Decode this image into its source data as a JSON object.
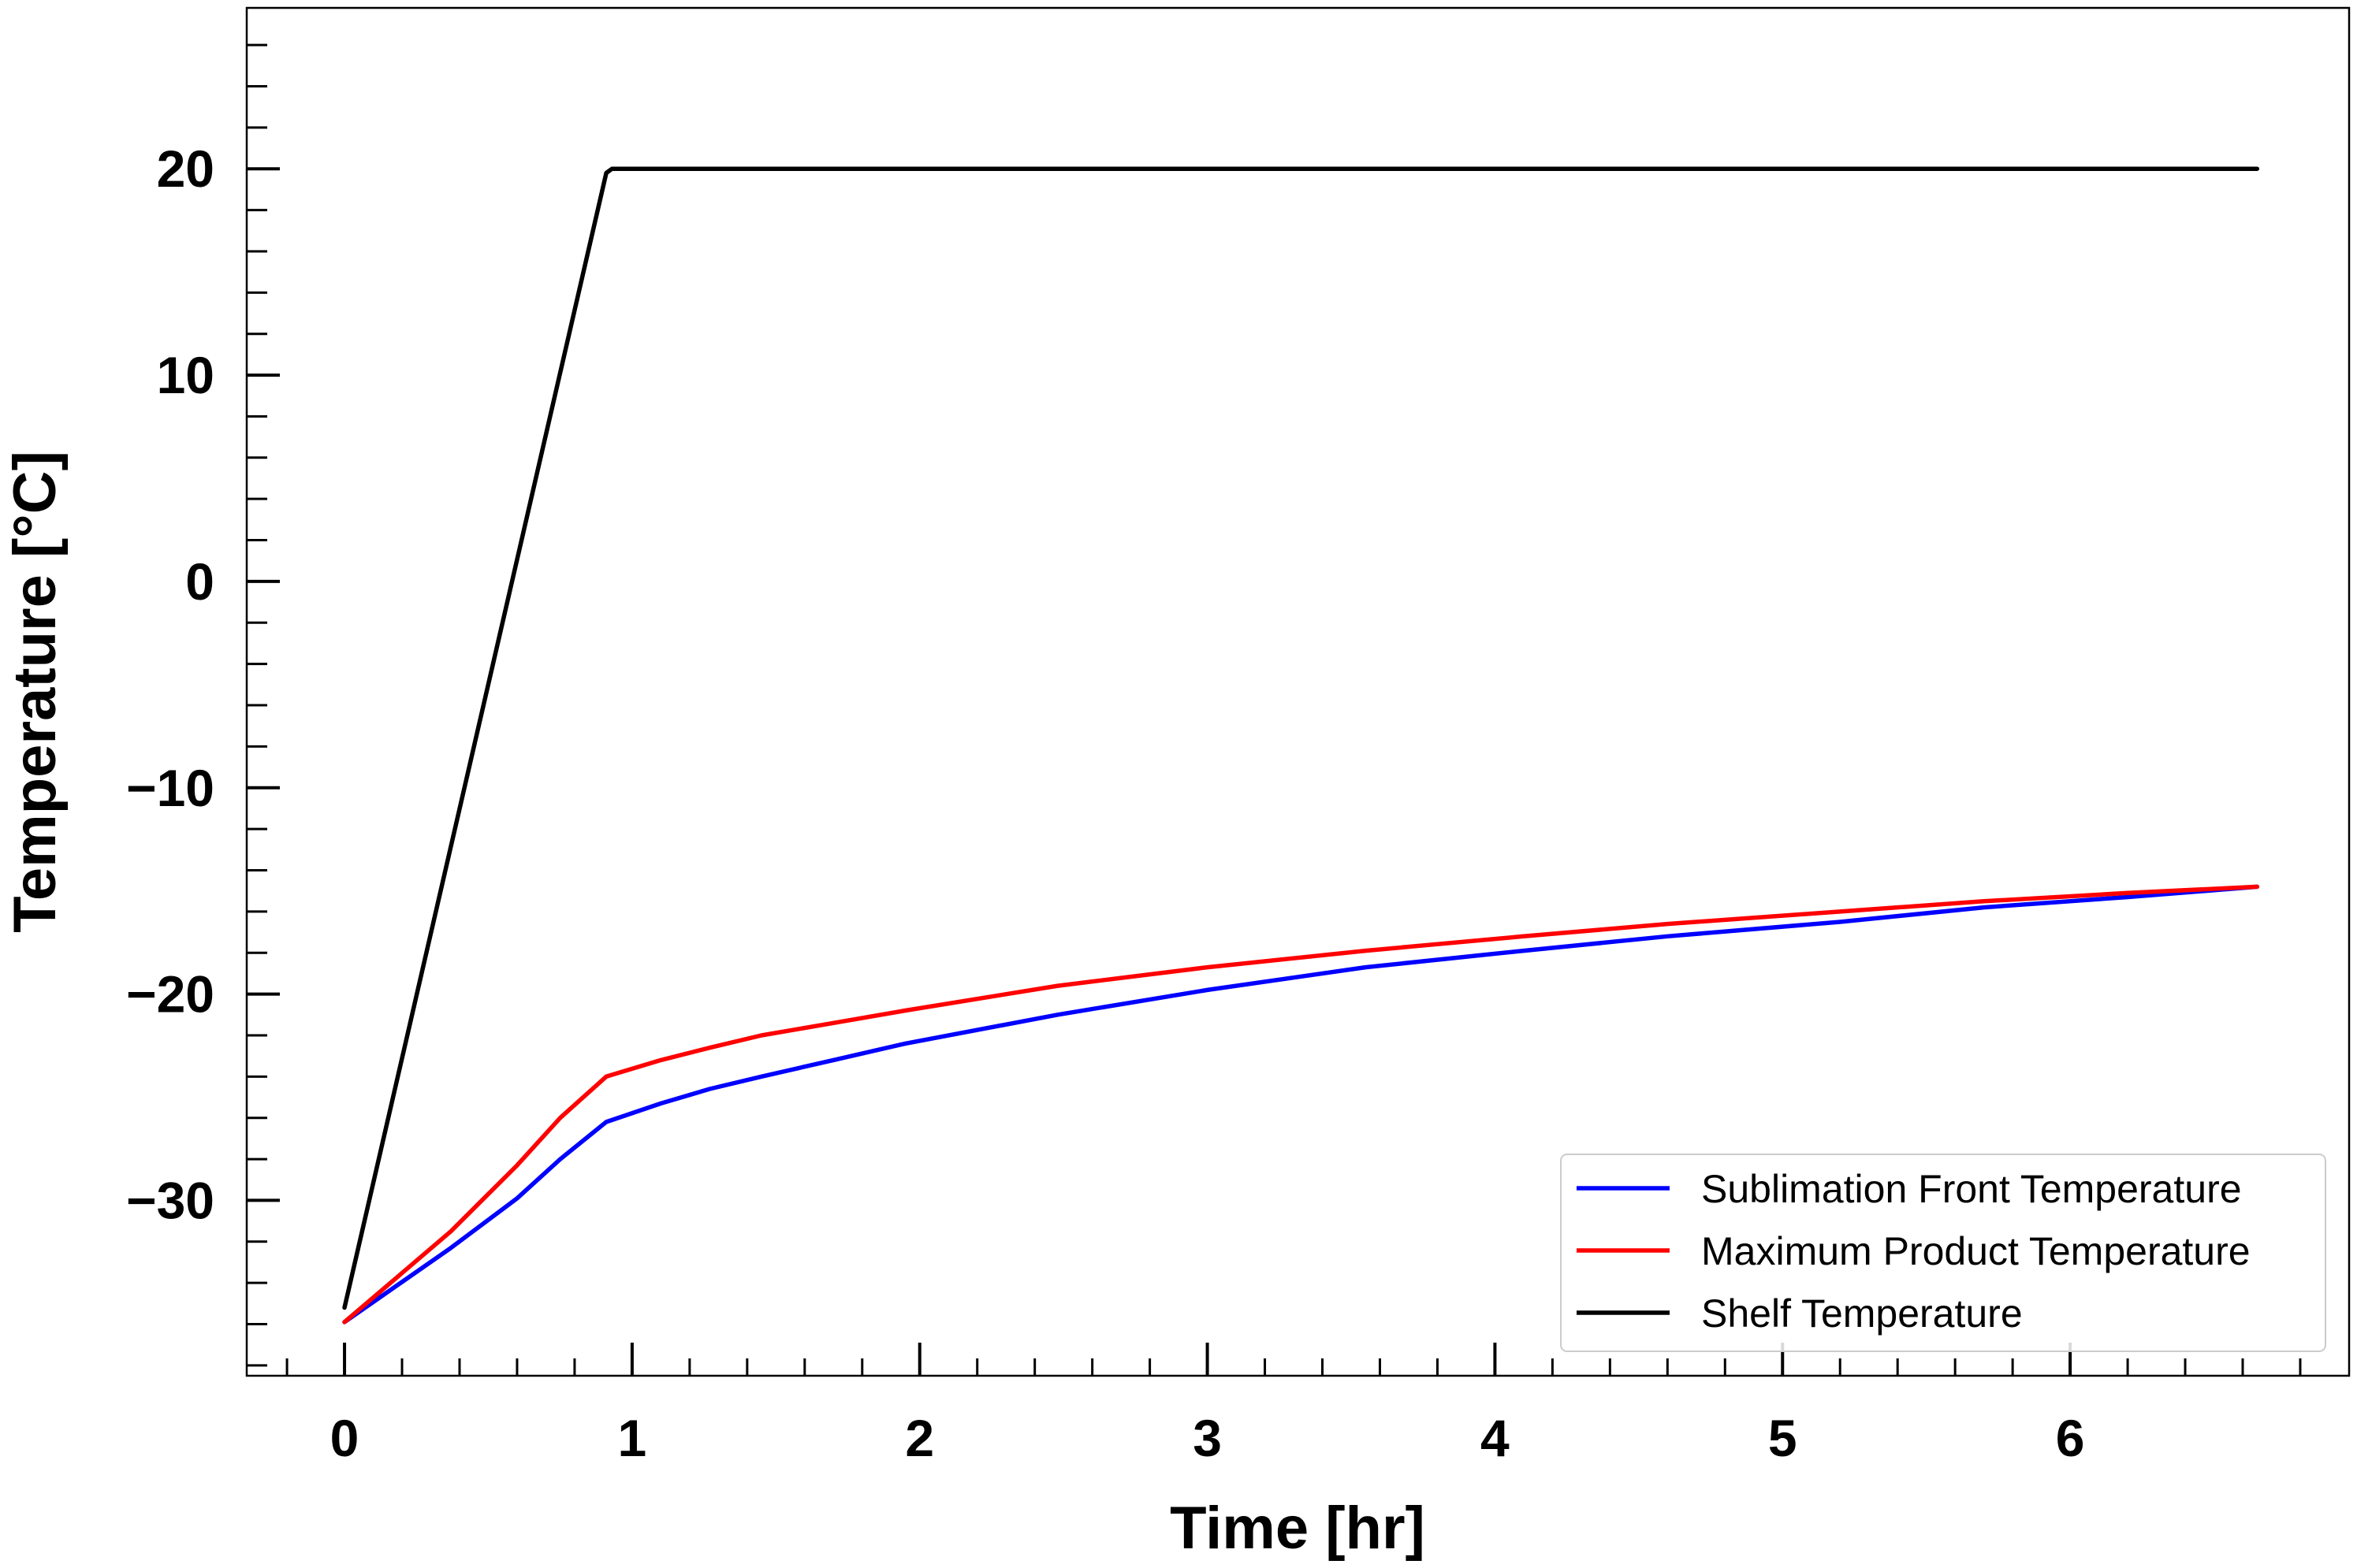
{
  "chart_data": {
    "type": "line",
    "title": "",
    "xlabel": "Time [hr]",
    "ylabel": "Temperature [°C]",
    "xlim": [
      -0.34,
      6.97
    ],
    "ylim": [
      -38.5,
      27.8
    ],
    "xticks": [
      0,
      1,
      2,
      3,
      4,
      5,
      6
    ],
    "yticks": [
      -30,
      -20,
      -10,
      0,
      10,
      20
    ],
    "xtick_labels": [
      "0",
      "1",
      "2",
      "3",
      "4",
      "5",
      "6"
    ],
    "ytick_labels": [
      "−30",
      "−20",
      "−10",
      "0",
      "10",
      "20"
    ],
    "x_minor_step": 0.2,
    "y_minor_step": 2,
    "grid": false,
    "legend_position": "lower-right",
    "series": [
      {
        "name": "Sublimation Front Temperature",
        "color": "#0000ff",
        "x": [
          0,
          0.37,
          0.6,
          0.75,
          0.91,
          1.1,
          1.27,
          1.45,
          1.7,
          1.95,
          2.48,
          3.0,
          3.55,
          4.1,
          4.6,
          5.2,
          5.7,
          6.2,
          6.65
        ],
        "y": [
          -35.9,
          -32.3,
          -29.9,
          -28.0,
          -26.2,
          -25.3,
          -24.6,
          -24.0,
          -23.2,
          -22.4,
          -21.0,
          -19.8,
          -18.7,
          -17.9,
          -17.2,
          -16.5,
          -15.8,
          -15.3,
          -14.8
        ]
      },
      {
        "name": "Maximum Product Temperature",
        "color": "#ff0000",
        "x": [
          0,
          0.37,
          0.6,
          0.75,
          0.91,
          1.1,
          1.27,
          1.45,
          1.7,
          1.95,
          2.48,
          3.0,
          3.55,
          4.1,
          4.6,
          5.2,
          5.7,
          6.2,
          6.65
        ],
        "y": [
          -35.9,
          -31.5,
          -28.3,
          -26.0,
          -24.0,
          -23.2,
          -22.6,
          -22.0,
          -21.4,
          -20.8,
          -19.6,
          -18.7,
          -17.9,
          -17.2,
          -16.6,
          -16.0,
          -15.5,
          -15.1,
          -14.8
        ]
      },
      {
        "name": "Shelf Temperature",
        "color": "#000000",
        "x": [
          0,
          0.91,
          0.93,
          6.65
        ],
        "y": [
          -35.2,
          19.8,
          20.0,
          20.0
        ]
      }
    ]
  }
}
